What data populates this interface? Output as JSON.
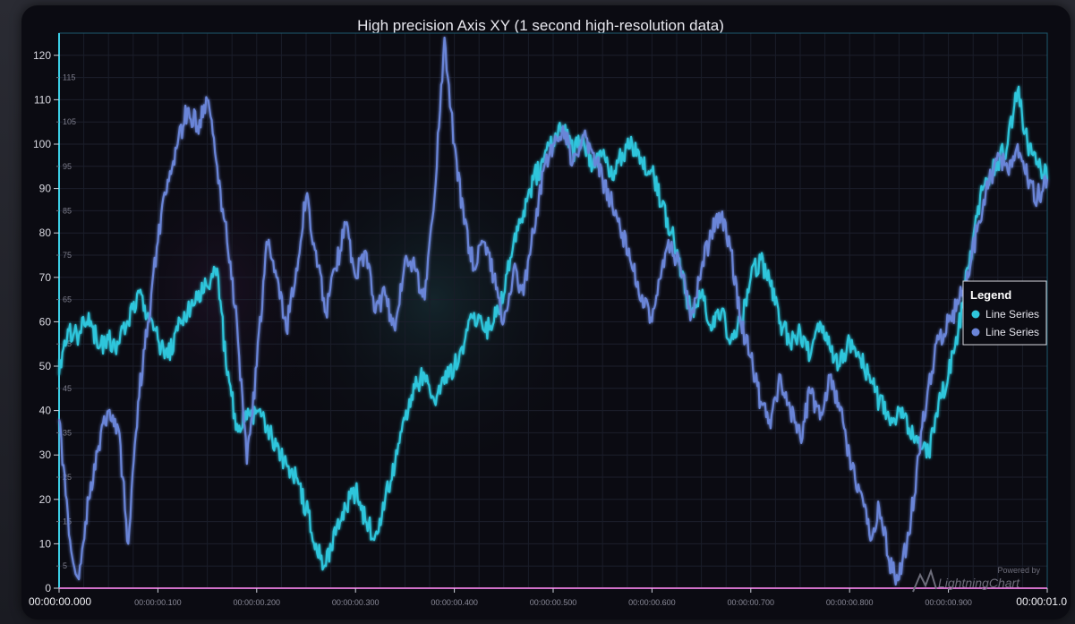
{
  "chart_data": {
    "type": "line",
    "title": "High precision Axis XY (1 second high-resolution data)",
    "xlabel": "",
    "ylabel": "",
    "ylim": [
      0,
      125
    ],
    "xlim": [
      0,
      1.0
    ],
    "y_major_ticks": [
      "0",
      "10",
      "20",
      "30",
      "40",
      "50",
      "60",
      "70",
      "80",
      "90",
      "100",
      "110",
      "120"
    ],
    "y_minor_ticks": [
      "5",
      "15",
      "25",
      "35",
      "45",
      "55",
      "65",
      "75",
      "85",
      "95",
      "105",
      "115"
    ],
    "x_ticks": [
      "00:00:00.000",
      "00:00:00.100",
      "00:00:00.200",
      "00:00:00.300",
      "00:00:00.400",
      "00:00:00.500",
      "00:00:00.600",
      "00:00:00.700",
      "00:00:00.800",
      "00:00:00.900",
      "00:00:01.0"
    ],
    "grid": true,
    "legend_position": "right",
    "series": [
      {
        "name": "Line Series",
        "color": "#2fc6dc",
        "x": [
          0.0,
          0.01,
          0.02,
          0.03,
          0.04,
          0.05,
          0.06,
          0.07,
          0.08,
          0.09,
          0.1,
          0.11,
          0.12,
          0.13,
          0.14,
          0.15,
          0.16,
          0.17,
          0.18,
          0.19,
          0.2,
          0.21,
          0.22,
          0.23,
          0.24,
          0.25,
          0.26,
          0.27,
          0.28,
          0.29,
          0.3,
          0.31,
          0.32,
          0.33,
          0.34,
          0.35,
          0.36,
          0.37,
          0.38,
          0.39,
          0.4,
          0.41,
          0.42,
          0.43,
          0.44,
          0.45,
          0.46,
          0.47,
          0.48,
          0.49,
          0.5,
          0.51,
          0.52,
          0.53,
          0.54,
          0.55,
          0.56,
          0.57,
          0.58,
          0.59,
          0.6,
          0.61,
          0.62,
          0.63,
          0.64,
          0.65,
          0.66,
          0.67,
          0.68,
          0.69,
          0.7,
          0.71,
          0.72,
          0.73,
          0.74,
          0.75,
          0.76,
          0.77,
          0.78,
          0.79,
          0.8,
          0.81,
          0.82,
          0.83,
          0.84,
          0.85,
          0.86,
          0.87,
          0.88,
          0.89,
          0.9,
          0.91,
          0.92,
          0.93,
          0.94,
          0.95,
          0.96,
          0.97,
          0.98,
          0.99,
          1.0
        ],
        "values": [
          48,
          58,
          57,
          62,
          54,
          56,
          55,
          60,
          67,
          62,
          56,
          52,
          58,
          62,
          65,
          68,
          72,
          48,
          37,
          38,
          40,
          36,
          32,
          28,
          25,
          18,
          10,
          5,
          12,
          18,
          22,
          15,
          12,
          20,
          28,
          38,
          45,
          48,
          42,
          46,
          50,
          55,
          62,
          58,
          60,
          66,
          78,
          85,
          92,
          96,
          100,
          104,
          98,
          102,
          95,
          98,
          92,
          98,
          100,
          96,
          94,
          86,
          80,
          70,
          62,
          66,
          58,
          62,
          56,
          60,
          70,
          74,
          68,
          60,
          55,
          58,
          52,
          60,
          54,
          50,
          56,
          52,
          48,
          42,
          38,
          40,
          36,
          34,
          30,
          42,
          48,
          58,
          72,
          86,
          92,
          96,
          100,
          112,
          100,
          96,
          92
        ]
      },
      {
        "name": "Line Series",
        "color": "#6b85d8",
        "x": [
          0.0,
          0.01,
          0.02,
          0.03,
          0.04,
          0.05,
          0.06,
          0.07,
          0.08,
          0.09,
          0.1,
          0.11,
          0.12,
          0.13,
          0.14,
          0.15,
          0.16,
          0.17,
          0.18,
          0.19,
          0.2,
          0.21,
          0.22,
          0.23,
          0.24,
          0.25,
          0.26,
          0.27,
          0.28,
          0.29,
          0.3,
          0.31,
          0.32,
          0.33,
          0.34,
          0.35,
          0.36,
          0.37,
          0.38,
          0.39,
          0.4,
          0.41,
          0.42,
          0.43,
          0.44,
          0.45,
          0.46,
          0.47,
          0.48,
          0.49,
          0.5,
          0.51,
          0.52,
          0.53,
          0.54,
          0.55,
          0.56,
          0.57,
          0.58,
          0.59,
          0.6,
          0.61,
          0.62,
          0.63,
          0.64,
          0.65,
          0.66,
          0.67,
          0.68,
          0.69,
          0.7,
          0.71,
          0.72,
          0.73,
          0.74,
          0.75,
          0.76,
          0.77,
          0.78,
          0.79,
          0.8,
          0.81,
          0.82,
          0.83,
          0.84,
          0.85,
          0.86,
          0.87,
          0.88,
          0.89,
          0.9,
          0.91,
          0.92,
          0.93,
          0.94,
          0.95,
          0.96,
          0.97,
          0.98,
          0.99,
          1.0
        ],
        "values": [
          38,
          12,
          2,
          20,
          32,
          40,
          36,
          10,
          42,
          60,
          78,
          92,
          100,
          108,
          104,
          110,
          95,
          78,
          60,
          28,
          50,
          78,
          70,
          58,
          72,
          88,
          76,
          62,
          72,
          82,
          70,
          76,
          62,
          66,
          58,
          74,
          72,
          65,
          88,
          124,
          100,
          82,
          72,
          78,
          70,
          60,
          72,
          66,
          80,
          94,
          100,
          104,
          96,
          102,
          98,
          92,
          86,
          80,
          72,
          66,
          60,
          72,
          78,
          70,
          62,
          72,
          80,
          84,
          76,
          60,
          52,
          42,
          36,
          48,
          40,
          34,
          44,
          38,
          48,
          40,
          30,
          22,
          12,
          18,
          6,
          2,
          12,
          30,
          46,
          56,
          60,
          64,
          70,
          82,
          90,
          98,
          94,
          100,
          92,
          88,
          92
        ]
      }
    ]
  },
  "legend": {
    "title": "Legend",
    "items": [
      {
        "label": "Line Series",
        "color": "#2fc6dc"
      },
      {
        "label": "Line Series",
        "color": "#6b85d8"
      }
    ]
  },
  "branding": {
    "powered": "Powered by",
    "name": "LightningChart"
  }
}
